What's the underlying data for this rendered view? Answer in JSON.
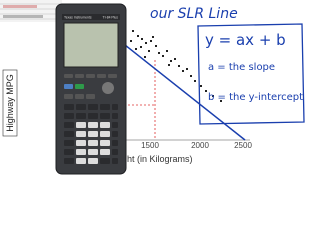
{
  "annotation": {
    "heading": "our SLR Line",
    "equation": "y = ax + b",
    "slope_note": "a = the slope",
    "intercept_note": "b = the y-intercept"
  },
  "plot": {
    "y_label": "Highway MPG",
    "x_label": "ight (in Kilograms)",
    "x_ticks": [
      "1500",
      "2000",
      "2500"
    ]
  },
  "calculator": {
    "brand": "Texas Instruments",
    "model": "TI-84 Plus"
  }
}
